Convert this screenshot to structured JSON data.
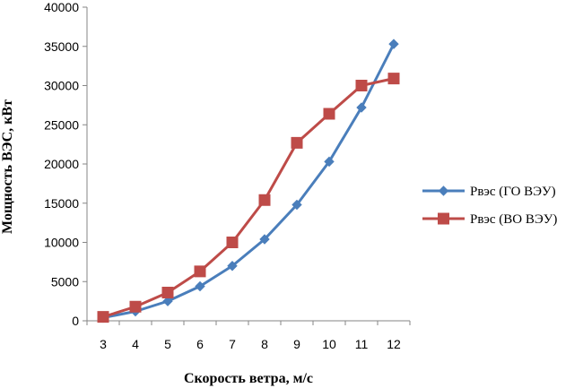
{
  "chart_data": {
    "type": "line",
    "title": "",
    "xlabel": "Скорость ветра, м/с",
    "ylabel": "Мощность ВЭС, кВт",
    "categories": [
      "3",
      "4",
      "5",
      "6",
      "7",
      "8",
      "9",
      "10",
      "11",
      "12"
    ],
    "ylim": [
      0,
      40000
    ],
    "yticks": [
      0,
      5000,
      10000,
      15000,
      20000,
      25000,
      30000,
      35000,
      40000
    ],
    "ytick_labels": [
      "0",
      "5000",
      "10000",
      "15000",
      "20000",
      "25000",
      "30000",
      "35000",
      "40000"
    ],
    "grid": false,
    "legend_position": "right",
    "series": [
      {
        "name": "Pвэс (ГО ВЭУ)",
        "color": "#4a7ebb",
        "marker": "diamond",
        "values": [
          400,
          1200,
          2500,
          4400,
          7000,
          10400,
          14800,
          20300,
          27200,
          35300
        ]
      },
      {
        "name": "Pвэс (ВО ВЭУ)",
        "color": "#be4b48",
        "marker": "square",
        "values": [
          500,
          1800,
          3600,
          6300,
          10000,
          15400,
          22700,
          26400,
          30000,
          30900
        ]
      }
    ]
  }
}
